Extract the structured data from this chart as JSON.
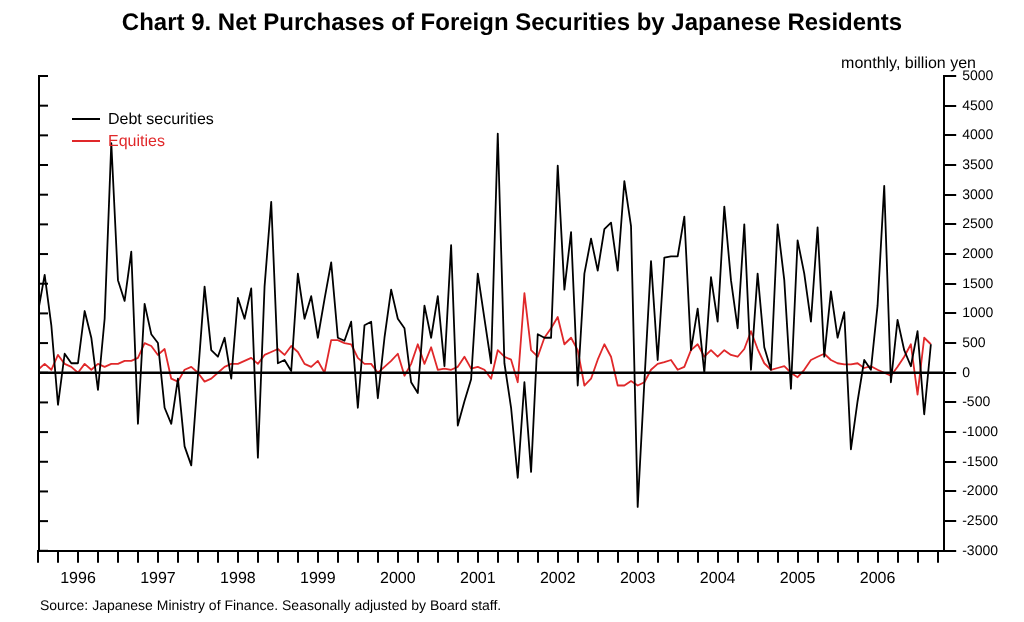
{
  "chart_data": {
    "type": "line",
    "title": "Chart 9. Net Purchases of Foreign Securities by Japanese Residents",
    "ylabel": "monthly, billion yen",
    "annotations": [
      "Source: Japanese Ministry of Finance. Seasonally adjusted by Board staff."
    ],
    "x": [
      "1996-01",
      "1996-02",
      "1996-03",
      "1996-04",
      "1996-05",
      "1996-06",
      "1996-07",
      "1996-08",
      "1996-09",
      "1996-10",
      "1996-11",
      "1996-12",
      "1997-01",
      "1997-02",
      "1997-03",
      "1997-04",
      "1997-05",
      "1997-06",
      "1997-07",
      "1997-08",
      "1997-09",
      "1997-10",
      "1997-11",
      "1997-12",
      "1998-01",
      "1998-02",
      "1998-03",
      "1998-04",
      "1998-05",
      "1998-06",
      "1998-07",
      "1998-08",
      "1998-09",
      "1998-10",
      "1998-11",
      "1998-12",
      "1999-01",
      "1999-02",
      "1999-03",
      "1999-04",
      "1999-05",
      "1999-06",
      "1999-07",
      "1999-08",
      "1999-09",
      "1999-10",
      "1999-11",
      "1999-12",
      "2000-01",
      "2000-02",
      "2000-03",
      "2000-04",
      "2000-05",
      "2000-06",
      "2000-07",
      "2000-08",
      "2000-09",
      "2000-10",
      "2000-11",
      "2000-12",
      "2001-01",
      "2001-02",
      "2001-03",
      "2001-04",
      "2001-05",
      "2001-06",
      "2001-07",
      "2001-08",
      "2001-09",
      "2001-10",
      "2001-11",
      "2001-12",
      "2002-01",
      "2002-02",
      "2002-03",
      "2002-04",
      "2002-05",
      "2002-06",
      "2002-07",
      "2002-08",
      "2002-09",
      "2002-10",
      "2002-11",
      "2002-12",
      "2003-01",
      "2003-02",
      "2003-03",
      "2003-04",
      "2003-05",
      "2003-06",
      "2003-07",
      "2003-08",
      "2003-09",
      "2003-10",
      "2003-11",
      "2003-12",
      "2004-01",
      "2004-02",
      "2004-03",
      "2004-04",
      "2004-05",
      "2004-06",
      "2004-07",
      "2004-08",
      "2004-09",
      "2004-10",
      "2004-11",
      "2004-12",
      "2005-01",
      "2005-02",
      "2005-03",
      "2005-04",
      "2005-05",
      "2005-06",
      "2005-07",
      "2005-08",
      "2005-09",
      "2005-10",
      "2005-11",
      "2005-12",
      "2006-01",
      "2006-02",
      "2006-03",
      "2006-04",
      "2006-05",
      "2006-06",
      "2006-07",
      "2006-08",
      "2006-09",
      "2006-10",
      "2006-11",
      "2006-12",
      "2007-01",
      "2007-02",
      "2007-03"
    ],
    "series": [
      {
        "name": "Debt securities",
        "color": "#000000",
        "values": [
          1020,
          1650,
          800,
          -540,
          320,
          160,
          160,
          1040,
          590,
          -290,
          910,
          3870,
          1560,
          1210,
          2040,
          -860,
          1160,
          650,
          500,
          -590,
          -860,
          -100,
          -1240,
          -1560,
          -50,
          1450,
          380,
          270,
          590,
          -100,
          1260,
          910,
          1420,
          -1430,
          1450,
          2880,
          160,
          215,
          30,
          1670,
          910,
          1290,
          590,
          1240,
          1860,
          590,
          540,
          860,
          -590,
          800,
          860,
          -430,
          590,
          1400,
          910,
          750,
          -160,
          -340,
          1130,
          590,
          1290,
          110,
          2150,
          -890,
          -480,
          -110,
          1670,
          910,
          160,
          4030,
          160,
          -590,
          -1770,
          -160,
          -1670,
          650,
          590,
          590,
          3490,
          1400,
          2370,
          -215,
          1670,
          2260,
          1720,
          2420,
          2530,
          1720,
          3230,
          2470,
          -2260,
          -160,
          1880,
          215,
          1940,
          1960,
          1960,
          2630,
          380,
          1080,
          0,
          1610,
          860,
          2800,
          1560,
          750,
          2500,
          50,
          1670,
          430,
          50,
          2500,
          1560,
          -270,
          2230,
          1670,
          860,
          2450,
          270,
          1370,
          590,
          1020,
          -1290,
          -480,
          215,
          50,
          1130,
          3150,
          -160,
          890,
          380,
          110,
          700,
          -700,
          480
        ]
      },
      {
        "name": "Equities",
        "color": "#e0282a",
        "values": [
          50,
          150,
          50,
          300,
          150,
          100,
          0,
          150,
          50,
          150,
          100,
          150,
          150,
          200,
          200,
          250,
          500,
          450,
          300,
          400,
          -100,
          -150,
          50,
          100,
          0,
          -150,
          -100,
          0,
          100,
          150,
          150,
          200,
          250,
          150,
          300,
          350,
          400,
          300,
          450,
          350,
          150,
          100,
          200,
          0,
          550,
          550,
          500,
          480,
          250,
          150,
          150,
          0,
          100,
          200,
          320,
          -50,
          150,
          480,
          150,
          430,
          50,
          70,
          50,
          100,
          270,
          70,
          100,
          50,
          -100,
          380,
          270,
          220,
          -160,
          1340,
          380,
          270,
          590,
          750,
          940,
          480,
          590,
          380,
          -215,
          -100,
          220,
          480,
          270,
          -215,
          -215,
          -140,
          -215,
          -160,
          50,
          150,
          180,
          215,
          50,
          100,
          380,
          480,
          270,
          380,
          270,
          380,
          300,
          270,
          400,
          700,
          400,
          160,
          50,
          80,
          110,
          0,
          -75,
          50,
          215,
          270,
          320,
          215,
          160,
          140,
          140,
          160,
          80,
          110,
          50,
          0,
          -50,
          100,
          270,
          480,
          -370,
          590,
          480
        ]
      }
    ],
    "xlim": [
      "1996-01",
      "2007-05"
    ],
    "xticks": [
      {
        "value": "1996-01",
        "label": null
      },
      {
        "value": "1996-04",
        "label": null
      },
      {
        "value": "1996-07",
        "label": "1996"
      },
      {
        "value": "1996-10",
        "label": null
      },
      {
        "value": "1997-01",
        "label": null
      },
      {
        "value": "1997-04",
        "label": null
      },
      {
        "value": "1997-07",
        "label": "1997"
      },
      {
        "value": "1997-10",
        "label": null
      },
      {
        "value": "1998-01",
        "label": null
      },
      {
        "value": "1998-04",
        "label": null
      },
      {
        "value": "1998-07",
        "label": "1998"
      },
      {
        "value": "1998-10",
        "label": null
      },
      {
        "value": "1999-01",
        "label": null
      },
      {
        "value": "1999-04",
        "label": null
      },
      {
        "value": "1999-07",
        "label": "1999"
      },
      {
        "value": "1999-10",
        "label": null
      },
      {
        "value": "2000-01",
        "label": null
      },
      {
        "value": "2000-04",
        "label": null
      },
      {
        "value": "2000-07",
        "label": "2000"
      },
      {
        "value": "2000-10",
        "label": null
      },
      {
        "value": "2001-01",
        "label": null
      },
      {
        "value": "2001-04",
        "label": null
      },
      {
        "value": "2001-07",
        "label": "2001"
      },
      {
        "value": "2001-10",
        "label": null
      },
      {
        "value": "2002-01",
        "label": null
      },
      {
        "value": "2002-04",
        "label": null
      },
      {
        "value": "2002-07",
        "label": "2002"
      },
      {
        "value": "2002-10",
        "label": null
      },
      {
        "value": "2003-01",
        "label": null
      },
      {
        "value": "2003-04",
        "label": null
      },
      {
        "value": "2003-07",
        "label": "2003"
      },
      {
        "value": "2003-10",
        "label": null
      },
      {
        "value": "2004-01",
        "label": null
      },
      {
        "value": "2004-04",
        "label": null
      },
      {
        "value": "2004-07",
        "label": "2004"
      },
      {
        "value": "2004-10",
        "label": null
      },
      {
        "value": "2005-01",
        "label": null
      },
      {
        "value": "2005-04",
        "label": null
      },
      {
        "value": "2005-07",
        "label": "2005"
      },
      {
        "value": "2005-10",
        "label": null
      },
      {
        "value": "2006-01",
        "label": null
      },
      {
        "value": "2006-04",
        "label": null
      },
      {
        "value": "2006-07",
        "label": "2006"
      },
      {
        "value": "2006-10",
        "label": null
      },
      {
        "value": "2007-01",
        "label": null
      },
      {
        "value": "2007-04",
        "label": null
      }
    ],
    "ylim": [
      -3000,
      5000
    ],
    "yticks": [
      -3000,
      -2500,
      -2000,
      -1500,
      -1000,
      -500,
      0,
      500,
      1000,
      1500,
      2000,
      2500,
      3000,
      3500,
      4000,
      4500,
      5000
    ],
    "ref_lines": [
      {
        "axis": "y",
        "value": 0,
        "color": "#000000"
      }
    ],
    "grid": false,
    "legend": "top left",
    "marker": "none",
    "line_style": "solid"
  }
}
